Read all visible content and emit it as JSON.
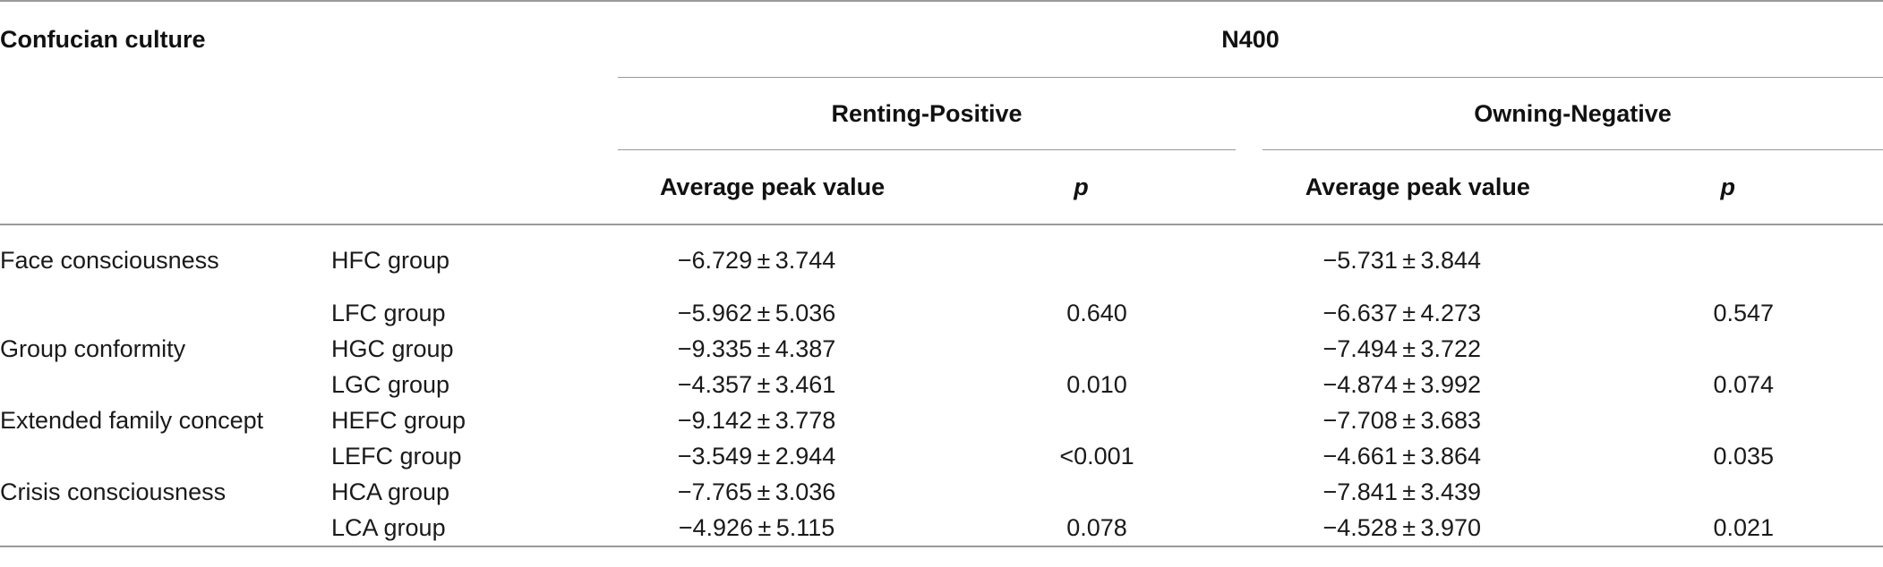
{
  "table": {
    "row_header_title": "Confucian culture",
    "measure": "N400",
    "conditions": [
      {
        "label": "Renting-Positive",
        "col_value": "Average peak value",
        "col_p": "p"
      },
      {
        "label": "Owning-Negative",
        "col_value": "Average peak value",
        "col_p": "p"
      }
    ],
    "rows": [
      {
        "factor": "Face consciousness",
        "group": "HFC group",
        "rp_avg": "−6.729 ± 3.744",
        "rp_p": "",
        "on_avg": "−5.731 ± 3.844",
        "on_p": ""
      },
      {
        "factor": "",
        "group": "LFC group",
        "rp_avg": "−5.962 ± 5.036",
        "rp_p": "0.640",
        "on_avg": "−6.637 ± 4.273",
        "on_p": "0.547"
      },
      {
        "factor": "Group conformity",
        "group": "HGC group",
        "rp_avg": "−9.335 ± 4.387",
        "rp_p": "",
        "on_avg": "−7.494 ± 3.722",
        "on_p": ""
      },
      {
        "factor": "",
        "group": "LGC group",
        "rp_avg": "−4.357 ± 3.461",
        "rp_p": "0.010",
        "on_avg": "−4.874 ± 3.992",
        "on_p": "0.074"
      },
      {
        "factor": "Extended family concept",
        "group": "HEFC group",
        "rp_avg": "−9.142 ± 3.778",
        "rp_p": "",
        "on_avg": "−7.708 ± 3.683",
        "on_p": ""
      },
      {
        "factor": "",
        "group": "LEFC group",
        "rp_avg": "−3.549 ± 2.944",
        "rp_p": "<0.001",
        "on_avg": "−4.661 ± 3.864",
        "on_p": "0.035"
      },
      {
        "factor": "Crisis consciousness",
        "group": "HCA group",
        "rp_avg": "−7.765 ± 3.036",
        "rp_p": "",
        "on_avg": "−7.841 ± 3.439",
        "on_p": ""
      },
      {
        "factor": "",
        "group": "LCA group",
        "rp_avg": "−4.926 ± 5.115",
        "rp_p": "0.078",
        "on_avg": "−4.528 ± 3.970",
        "on_p": "0.021"
      }
    ]
  }
}
